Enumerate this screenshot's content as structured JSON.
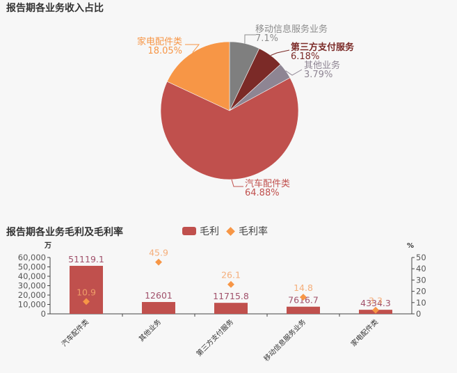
{
  "pie_section": {
    "title": "报告期各业务收入占比"
  },
  "bar_section": {
    "title": "报告期各业务毛利及毛利率",
    "legend": [
      {
        "label": "毛利",
        "shape": "bar",
        "color": "#c0504d"
      },
      {
        "label": "毛利率",
        "shape": "diamond",
        "color": "#f79646"
      }
    ],
    "left_unit": "万",
    "right_unit": "%"
  },
  "chart_data": [
    {
      "type": "pie",
      "title": "报告期各业务收入占比",
      "categories": [
        "移动信息服务业务",
        "第三方支付服务",
        "其他业务",
        "汽车配件类",
        "家电配件类"
      ],
      "values": [
        7.1,
        6.18,
        3.79,
        64.88,
        18.05
      ],
      "value_labels": [
        "7.1%",
        "6.18%",
        "3.79%",
        "64.88%",
        "18.05%"
      ],
      "colors": [
        "#7f7f7f",
        "#7b2a27",
        "#8e8593",
        "#c0504d",
        "#f79646"
      ],
      "label_colors": [
        "#8c8c8c",
        "#7b2a27",
        "#8e8593",
        "#c0504d",
        "#f79646"
      ],
      "start_angle": "12 o'clock, clockwise"
    },
    {
      "type": "bar",
      "title": "报告期各业务毛利及毛利率",
      "categories": [
        "汽车配件类",
        "其他业务",
        "第三方支付服务",
        "移动信息服务业务",
        "家电配件类"
      ],
      "series": [
        {
          "name": "毛利",
          "type": "bar",
          "axis": "left",
          "values": [
            51119.1,
            12601,
            11715.8,
            7616.7,
            4334.3
          ],
          "labels": [
            "51119.1",
            "12601",
            "11715.8",
            "7616.7",
            "4334.3"
          ],
          "color": "#c0504d"
        },
        {
          "name": "毛利率",
          "type": "scatter",
          "axis": "right",
          "values": [
            10.9,
            45.9,
            26.1,
            14.8,
            3.3
          ],
          "labels": [
            "10.9",
            "45.9",
            "26.1",
            "14.8",
            "3.3"
          ],
          "color": "#f79646"
        }
      ],
      "ylabel": "万",
      "y2label": "%",
      "ylim": [
        0,
        60000
      ],
      "y2lim": [
        0,
        50
      ],
      "yticks": [
        "0",
        "10,000",
        "20,000",
        "30,000",
        "40,000",
        "50,000",
        "60,000"
      ],
      "y2ticks": [
        "0",
        "10",
        "20",
        "30",
        "40",
        "50"
      ],
      "legend_position": "top",
      "grid": false
    }
  ]
}
